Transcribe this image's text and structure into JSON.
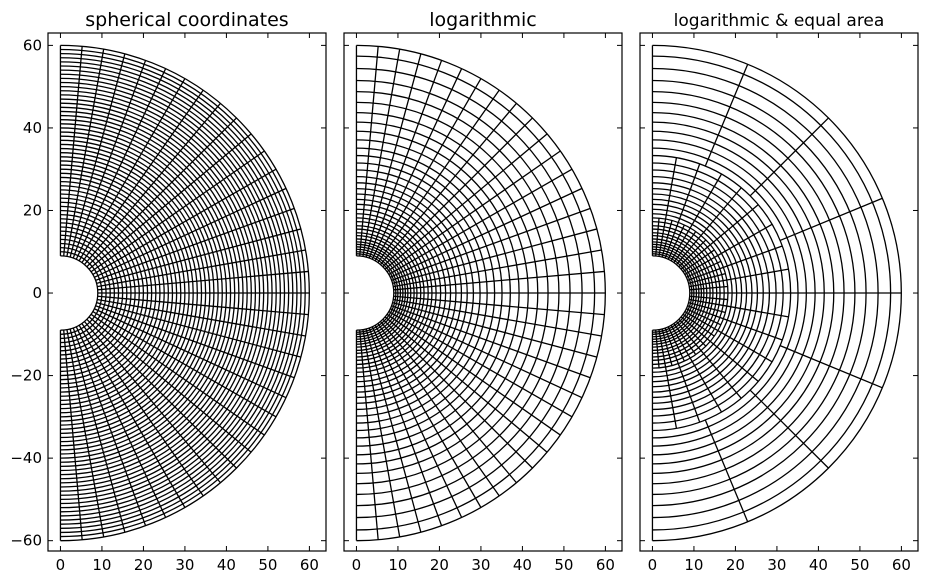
{
  "chart_data": [
    {
      "type": "polar-grid",
      "title": "spherical coordinates",
      "xlim": [
        -3,
        64
      ],
      "ylim": [
        -62.5,
        63
      ],
      "xticks": [
        0,
        10,
        20,
        30,
        40,
        50,
        60
      ],
      "yticks": [
        -60,
        -40,
        -20,
        0,
        20,
        40,
        60
      ],
      "show_y_tick_labels": true,
      "inner_radius": 9,
      "outer_radius": 60,
      "radii": [
        9,
        10,
        11,
        12,
        13,
        14,
        15,
        16,
        17,
        18,
        19,
        20,
        21,
        22,
        23,
        24,
        25,
        26,
        27,
        28,
        29,
        30,
        31,
        32,
        33,
        34,
        35,
        36,
        37,
        38,
        39,
        40,
        41,
        42,
        43,
        44,
        45,
        46,
        47,
        48,
        49,
        50,
        51,
        52,
        53,
        54,
        55,
        56,
        57,
        58,
        59,
        60
      ],
      "angles_deg": [
        -90,
        -85,
        -80,
        -75,
        -70,
        -65,
        -60,
        -55,
        -50,
        -45,
        -40,
        -35,
        -30,
        -25,
        -20,
        -15,
        -10,
        -5,
        0,
        5,
        10,
        15,
        20,
        25,
        30,
        35,
        40,
        45,
        50,
        55,
        60,
        65,
        70,
        75,
        80,
        85,
        90
      ]
    },
    {
      "type": "polar-grid",
      "title": "logarithmic",
      "xlim": [
        -3,
        64
      ],
      "ylim": [
        -62.5,
        63
      ],
      "xticks": [
        0,
        10,
        20,
        30,
        40,
        50,
        60
      ],
      "yticks": [
        -60,
        -40,
        -20,
        0,
        20,
        40,
        60
      ],
      "show_y_tick_labels": false,
      "inner_radius": 9,
      "outer_radius": 60,
      "radii": [
        9,
        9.5,
        10,
        10.6,
        11.2,
        11.8,
        12.4,
        13.1,
        13.9,
        14.6,
        15.5,
        16.3,
        17.3,
        18.2,
        19.2,
        20.3,
        21.5,
        22.7,
        24,
        25.3,
        26.7,
        28.2,
        29.8,
        31.5,
        33.3,
        35.1,
        37.1,
        39.2,
        41.4,
        43.7,
        46.2,
        48.8,
        51.5,
        54.4,
        57.4,
        60
      ],
      "angles_deg": [
        -90,
        -85,
        -80,
        -75,
        -70,
        -65,
        -60,
        -55,
        -50,
        -45,
        -40,
        -35,
        -30,
        -25,
        -20,
        -15,
        -10,
        -5,
        0,
        5,
        10,
        15,
        20,
        25,
        30,
        35,
        40,
        45,
        50,
        55,
        60,
        65,
        70,
        75,
        80,
        85,
        90
      ]
    },
    {
      "type": "polar-grid",
      "title": "logarithmic & equal area",
      "xlim": [
        -3,
        64
      ],
      "ylim": [
        -62.5,
        63
      ],
      "xticks": [
        0,
        10,
        20,
        30,
        40,
        50,
        60
      ],
      "yticks": [
        -60,
        -40,
        -20,
        0,
        20,
        40,
        60
      ],
      "show_y_tick_labels": false,
      "inner_radius": 9,
      "outer_radius": 60,
      "radii": [
        9,
        9.5,
        10,
        10.6,
        11.2,
        11.8,
        12.4,
        13.1,
        13.9,
        14.6,
        15.5,
        16.3,
        17.3,
        18.2,
        19.2,
        20.3,
        21.5,
        22.7,
        24,
        25.3,
        26.7,
        28.2,
        29.8,
        31.5,
        33.3,
        35.1,
        37.1,
        39.2,
        41.4,
        43.7,
        46.2,
        48.8,
        51.5,
        54.4,
        57.4,
        60
      ],
      "angle_bands": [
        {
          "r_min": 9,
          "r_max": 18.2,
          "angles_deg": [
            -90,
            -85,
            -80,
            -75,
            -70,
            -65,
            -60,
            -55,
            -50,
            -45,
            -40,
            -35,
            -30,
            -25,
            -20,
            -15,
            -10,
            -5,
            0,
            5,
            10,
            15,
            20,
            25,
            30,
            35,
            40,
            45,
            50,
            55,
            60,
            65,
            70,
            75,
            80,
            85,
            90
          ]
        },
        {
          "r_min": 18.2,
          "r_max": 33.3,
          "angles_deg": [
            -90,
            -80,
            -70,
            -60,
            -50,
            -40,
            -30,
            -20,
            -10,
            0,
            10,
            20,
            30,
            40,
            50,
            60,
            70,
            80,
            90
          ]
        },
        {
          "r_min": 33.3,
          "r_max": 60,
          "angles_deg": [
            -90,
            -67.5,
            -45,
            -22.5,
            0,
            22.5,
            45,
            67.5,
            90
          ]
        }
      ]
    }
  ]
}
